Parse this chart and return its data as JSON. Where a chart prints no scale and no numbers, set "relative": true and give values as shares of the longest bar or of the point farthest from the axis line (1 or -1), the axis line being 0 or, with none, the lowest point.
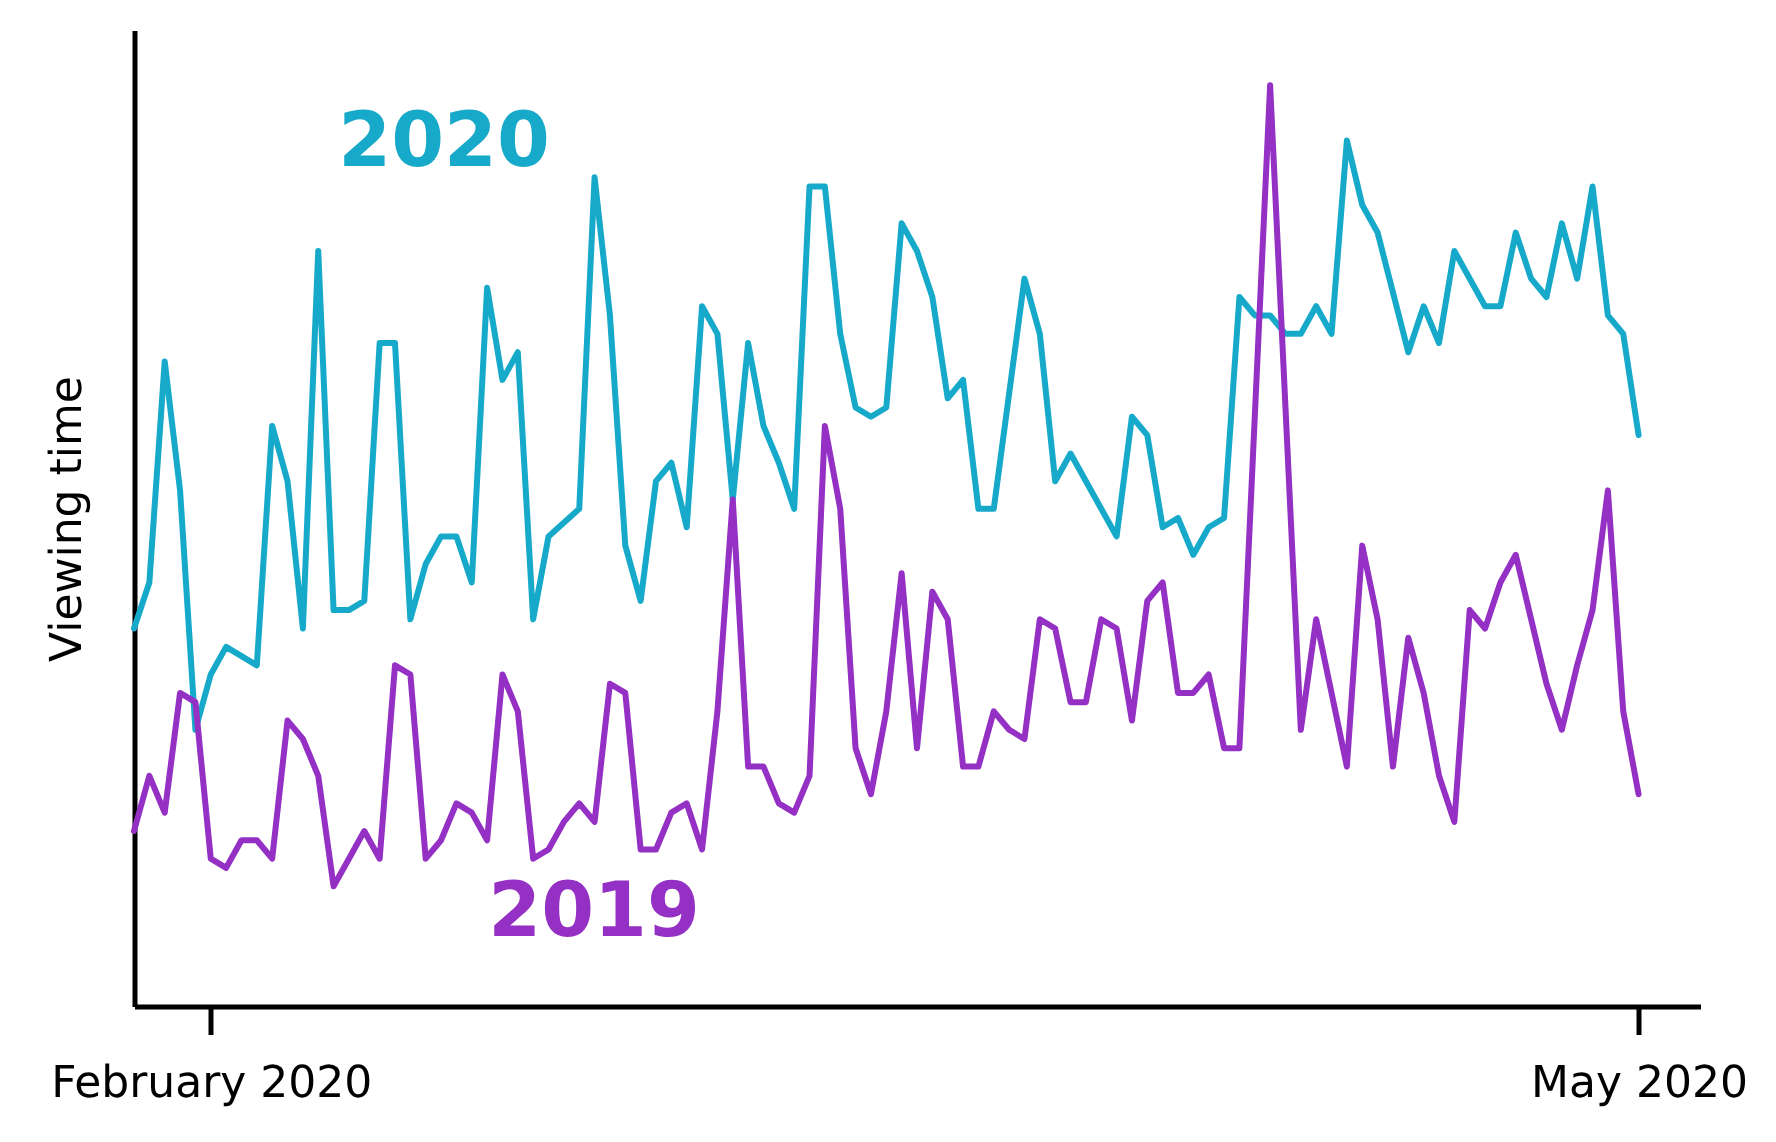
{
  "chart_data": {
    "type": "line",
    "ylabel": "Viewing time",
    "relative": true,
    "xlim": [
      "2020-01-27",
      "2020-05-08"
    ],
    "xticks": [
      {
        "value": "2020-02-01",
        "label": "February 2020"
      },
      {
        "value": "2020-05-04",
        "label": "May 2020"
      }
    ],
    "series": [
      {
        "name": "2020",
        "color": "#17a9c9",
        "x": [
          "2020-01-27",
          "2020-01-28",
          "2020-01-29",
          "2020-01-30",
          "2020-01-31",
          "2020-02-01",
          "2020-02-02",
          "2020-02-03",
          "2020-02-04",
          "2020-02-05",
          "2020-02-06",
          "2020-02-07",
          "2020-02-08",
          "2020-02-09",
          "2020-02-10",
          "2020-02-11",
          "2020-02-12",
          "2020-02-13",
          "2020-02-14",
          "2020-02-15",
          "2020-02-16",
          "2020-02-17",
          "2020-02-18",
          "2020-02-19",
          "2020-02-20",
          "2020-02-21",
          "2020-02-22",
          "2020-02-23",
          "2020-02-25",
          "2020-02-26",
          "2020-02-27",
          "2020-02-28",
          "2020-02-29",
          "2020-03-01",
          "2020-03-02",
          "2020-03-03",
          "2020-03-04",
          "2020-03-05",
          "2020-03-06",
          "2020-03-07",
          "2020-03-08",
          "2020-03-09",
          "2020-03-10",
          "2020-03-11",
          "2020-03-12",
          "2020-03-13",
          "2020-03-14",
          "2020-03-15",
          "2020-03-16",
          "2020-03-17",
          "2020-03-18",
          "2020-03-19",
          "2020-03-20",
          "2020-03-21",
          "2020-03-22",
          "2020-03-23",
          "2020-03-25",
          "2020-03-26",
          "2020-03-27",
          "2020-03-28",
          "2020-03-31",
          "2020-04-01",
          "2020-04-02",
          "2020-04-03",
          "2020-04-04",
          "2020-04-05",
          "2020-04-06",
          "2020-04-07",
          "2020-04-08",
          "2020-04-09",
          "2020-04-10",
          "2020-04-11",
          "2020-04-12",
          "2020-04-13",
          "2020-04-14",
          "2020-04-15",
          "2020-04-16",
          "2020-04-17",
          "2020-04-19",
          "2020-04-20",
          "2020-04-21",
          "2020-04-22",
          "2020-04-24",
          "2020-04-25",
          "2020-04-26",
          "2020-04-27",
          "2020-04-28",
          "2020-04-29",
          "2020-04-30",
          "2020-05-01",
          "2020-05-02",
          "2020-05-03",
          "2020-05-04"
        ],
        "values": [
          0.41,
          0.46,
          0.7,
          0.56,
          0.3,
          0.36,
          0.39,
          0.38,
          0.37,
          0.63,
          0.57,
          0.41,
          0.82,
          0.43,
          0.43,
          0.44,
          0.72,
          0.72,
          0.42,
          0.48,
          0.51,
          0.51,
          0.46,
          0.78,
          0.68,
          0.71,
          0.42,
          0.51,
          0.54,
          0.9,
          0.75,
          0.5,
          0.44,
          0.57,
          0.59,
          0.52,
          0.76,
          0.73,
          0.55,
          0.72,
          0.63,
          0.59,
          0.54,
          0.89,
          0.89,
          0.73,
          0.65,
          0.64,
          0.65,
          0.85,
          0.82,
          0.77,
          0.66,
          0.68,
          0.54,
          0.54,
          0.79,
          0.73,
          0.57,
          0.6,
          0.51,
          0.64,
          0.62,
          0.52,
          0.53,
          0.49,
          0.52,
          0.53,
          0.77,
          0.75,
          0.75,
          0.73,
          0.73,
          0.76,
          0.73,
          0.94,
          0.87,
          0.84,
          0.71,
          0.76,
          0.72,
          0.82,
          0.76,
          0.76,
          0.84,
          0.79,
          0.77,
          0.85,
          0.79,
          0.89,
          0.75,
          0.73,
          0.62
        ]
      },
      {
        "name": "2019",
        "color": "#9430c4",
        "x": [
          "2020-01-27",
          "2020-01-28",
          "2020-01-29",
          "2020-01-30",
          "2020-01-31",
          "2020-02-01",
          "2020-02-02",
          "2020-02-03",
          "2020-02-04",
          "2020-02-05",
          "2020-02-06",
          "2020-02-07",
          "2020-02-08",
          "2020-02-09",
          "2020-02-10",
          "2020-02-11",
          "2020-02-12",
          "2020-02-13",
          "2020-02-14",
          "2020-02-15",
          "2020-02-16",
          "2020-02-17",
          "2020-02-18",
          "2020-02-19",
          "2020-02-20",
          "2020-02-21",
          "2020-02-22",
          "2020-02-23",
          "2020-02-24",
          "2020-02-25",
          "2020-02-26",
          "2020-02-27",
          "2020-02-28",
          "2020-02-29",
          "2020-03-01",
          "2020-03-02",
          "2020-03-03",
          "2020-03-04",
          "2020-03-05",
          "2020-03-06",
          "2020-03-07",
          "2020-03-08",
          "2020-03-09",
          "2020-03-10",
          "2020-03-11",
          "2020-03-12",
          "2020-03-13",
          "2020-03-14",
          "2020-03-15",
          "2020-03-16",
          "2020-03-17",
          "2020-03-18",
          "2020-03-19",
          "2020-03-20",
          "2020-03-21",
          "2020-03-22",
          "2020-03-23",
          "2020-03-24",
          "2020-03-25",
          "2020-03-26",
          "2020-03-27",
          "2020-03-28",
          "2020-03-29",
          "2020-03-30",
          "2020-03-31",
          "2020-04-01",
          "2020-04-02",
          "2020-04-03",
          "2020-04-04",
          "2020-04-05",
          "2020-04-06",
          "2020-04-07",
          "2020-04-08",
          "2020-04-10",
          "2020-04-12",
          "2020-04-13",
          "2020-04-15",
          "2020-04-16",
          "2020-04-17",
          "2020-04-18",
          "2020-04-19",
          "2020-04-20",
          "2020-04-21",
          "2020-04-22",
          "2020-04-23",
          "2020-04-24",
          "2020-04-25",
          "2020-04-26",
          "2020-04-27",
          "2020-04-28",
          "2020-04-29",
          "2020-04-30",
          "2020-05-01",
          "2020-05-02",
          "2020-05-03",
          "2020-05-04"
        ],
        "values": [
          0.19,
          0.25,
          0.21,
          0.34,
          0.33,
          0.16,
          0.15,
          0.18,
          0.18,
          0.16,
          0.31,
          0.29,
          0.25,
          0.13,
          0.16,
          0.19,
          0.16,
          0.37,
          0.36,
          0.16,
          0.18,
          0.22,
          0.21,
          0.18,
          0.36,
          0.32,
          0.16,
          0.17,
          0.2,
          0.22,
          0.2,
          0.35,
          0.34,
          0.17,
          0.17,
          0.21,
          0.22,
          0.17,
          0.32,
          0.55,
          0.26,
          0.26,
          0.22,
          0.21,
          0.25,
          0.63,
          0.54,
          0.28,
          0.23,
          0.32,
          0.47,
          0.28,
          0.45,
          0.42,
          0.26,
          0.26,
          0.32,
          0.3,
          0.29,
          0.42,
          0.41,
          0.33,
          0.33,
          0.42,
          0.41,
          0.31,
          0.44,
          0.46,
          0.34,
          0.34,
          0.36,
          0.28,
          0.28,
          1,
          0.3,
          0.42,
          0.26,
          0.5,
          0.42,
          0.26,
          0.4,
          0.34,
          0.25,
          0.2,
          0.43,
          0.41,
          0.46,
          0.49,
          0.42,
          0.35,
          0.3,
          0.37,
          0.43,
          0.56,
          0.32,
          0.23
        ]
      }
    ]
  }
}
